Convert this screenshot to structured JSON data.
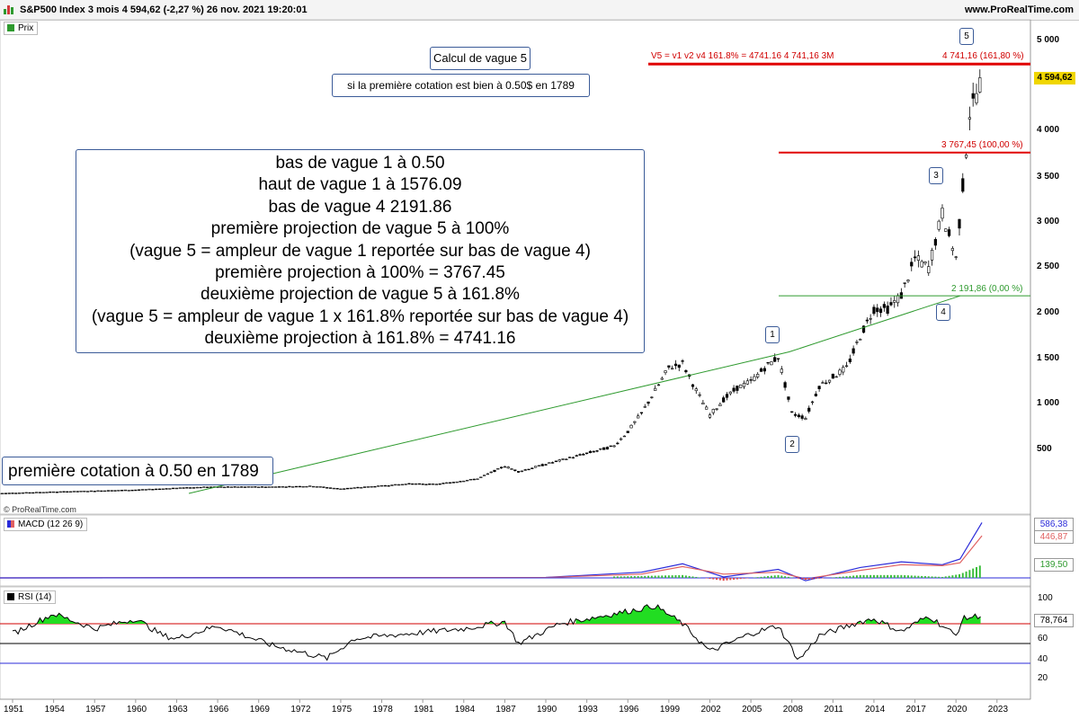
{
  "header": {
    "title": "S&P500 Index 3 mois 4 594,62 (-2,27 %) 26 nov. 2021 19:20:01",
    "brand": "www.ProRealTime.com"
  },
  "panels": {
    "price_tag": "Prix",
    "macd_tag": "MACD (12 26 9)",
    "rsi_tag": "RSI (14)",
    "copyright": "© ProRealTime.com"
  },
  "annotations": {
    "calc_title": "Calcul de vague 5",
    "calc_note": "si la première cotation est bien à 0.50$ en 1789",
    "explanation": [
      "bas de vague 1 à 0.50",
      "haut de vague 1 à 1576.09",
      "bas de vague 4 2191.86",
      "première projection de vague 5 à 100%",
      "(vague 5 = ampleur de vague 1 reportée sur bas de vague 4)",
      "première projection à 100% = 3767.45",
      "deuxième projection de vague 5 à 161.8%",
      "(vague 5 = ampleur de vague 1 x 161.8% reportée sur bas de vague 4)",
      "deuxième projection à 161.8% = 4741.16"
    ],
    "first_quote": "première cotation à 0.50 en 1789",
    "waves": [
      "1",
      "2",
      "3",
      "4",
      "5"
    ],
    "line_161_left": "V5 = v1 v2 v4 161.8% = 4741.16 4 741,16 3M",
    "line_161_right": "4 741,16 (161,80 %)",
    "line_100": "3 767,45 (100,00 %)",
    "line_0": "2 191,86 (0,00 %)"
  },
  "colors": {
    "projection_line": "#e00000",
    "trend_line": "#2e9a2e",
    "box_border": "#3b5b98",
    "price_badge": "#f0d600",
    "macd_line": "#2b2bd9",
    "signal_line": "#e06060",
    "rsi_fill": "#22dd22"
  },
  "chart_data": [
    {
      "type": "candlestick",
      "title": "S&P500 Index 3 mois",
      "ylim": [
        0,
        5200
      ],
      "y_ticks": [
        "5 000",
        "4 500",
        "4 000",
        "3 500",
        "3 000",
        "2 500",
        "2 000",
        "1 500",
        "1 000",
        "500"
      ],
      "x_ticks": [
        "1951",
        "1954",
        "1957",
        "1960",
        "1963",
        "1966",
        "1969",
        "1972",
        "1975",
        "1978",
        "1981",
        "1984",
        "1987",
        "1990",
        "1993",
        "1996",
        "1999",
        "2002",
        "2005",
        "2008",
        "2011",
        "2014",
        "2017",
        "2020",
        "2023"
      ],
      "last_price": "4 594,62",
      "series": {
        "x": [
          1950,
          1955,
          1960,
          1965,
          1970,
          1973,
          1975,
          1980,
          1982,
          1985,
          1987,
          1988,
          1990,
          1993,
          1995,
          1996,
          1997,
          1998,
          1999,
          2000,
          2001,
          2002,
          2003,
          2004,
          2005,
          2006,
          2007,
          2008,
          2009,
          2010,
          2011,
          2012,
          2013,
          2014,
          2015,
          2016,
          2017,
          2018,
          2019,
          2020,
          2020.5,
          2021,
          2021.9
        ],
        "close": [
          20,
          40,
          58,
          90,
          92,
          100,
          70,
          125,
          120,
          180,
          320,
          260,
          340,
          460,
          540,
          700,
          900,
          1150,
          1400,
          1450,
          1150,
          880,
          1050,
          1180,
          1250,
          1400,
          1520,
          900,
          850,
          1200,
          1300,
          1400,
          1750,
          2050,
          2050,
          2200,
          2600,
          2500,
          3100,
          2600,
          3400,
          4200,
          4594.62
        ]
      },
      "projections": [
        {
          "label": "0%",
          "value": 2191.86
        },
        {
          "label": "100%",
          "value": 3767.45
        },
        {
          "label": "161.8%",
          "value": 4741.16
        }
      ]
    },
    {
      "type": "line",
      "title": "MACD (12 26 9)",
      "value_labels": [
        "586,38",
        "446,87",
        "139,50"
      ],
      "series": [
        {
          "name": "MACD",
          "x": [
            1950,
            1990,
            1997,
            2000,
            2003,
            2007,
            2009,
            2013,
            2016,
            2019,
            2020.3,
            2021.9
          ],
          "values": [
            0,
            5,
            60,
            150,
            10,
            90,
            -30,
            110,
            170,
            140,
            200,
            586.38
          ]
        },
        {
          "name": "Signal",
          "x": [
            1950,
            1990,
            1997,
            2000,
            2003,
            2007,
            2009,
            2013,
            2016,
            2019,
            2020.3,
            2021.9
          ],
          "values": [
            0,
            4,
            40,
            120,
            40,
            60,
            -10,
            80,
            140,
            130,
            160,
            446.87
          ]
        }
      ],
      "histogram_last": 139.5
    },
    {
      "type": "line",
      "title": "RSI (14)",
      "ylim": [
        0,
        100
      ],
      "y_ticks": [
        "100",
        "80",
        "60",
        "40",
        "20"
      ],
      "levels": [
        70,
        50,
        30
      ],
      "last_value": "78,764",
      "series": [
        {
          "name": "RSI",
          "x": [
            1951,
            1954,
            1956,
            1957,
            1960,
            1962,
            1963,
            1966,
            1970,
            1974,
            1976,
            1980,
            1984,
            1987,
            1988,
            1991,
            1995,
            1998,
            2000,
            2002,
            2005,
            2007,
            2008.5,
            2010,
            2013,
            2014,
            2016,
            2018,
            2019,
            2020,
            2020.5,
            2021.9
          ],
          "values": [
            60,
            80,
            70,
            65,
            75,
            58,
            55,
            68,
            48,
            35,
            55,
            60,
            65,
            72,
            50,
            70,
            80,
            88,
            70,
            42,
            60,
            68,
            33,
            58,
            72,
            75,
            62,
            78,
            68,
            58,
            75,
            78.764
          ]
        }
      ]
    }
  ]
}
